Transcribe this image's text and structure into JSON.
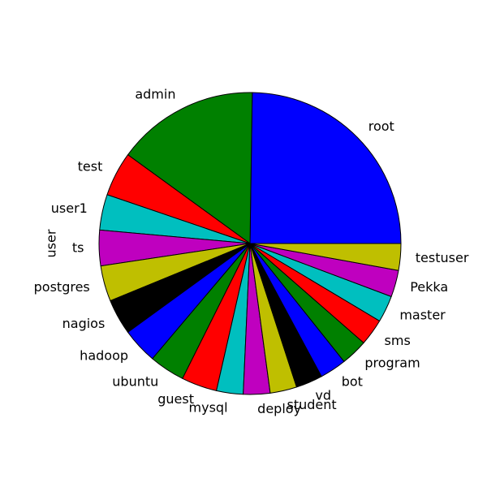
{
  "chart_data": {
    "type": "pie",
    "ylabel": "user",
    "start_angle_deg": 0,
    "direction": "counterclockwise",
    "slices": [
      {
        "label": "root",
        "value": 26.0,
        "color": "#0000ff"
      },
      {
        "label": "admin",
        "value": 16.0,
        "color": "#008000"
      },
      {
        "label": "test",
        "value": 5.0,
        "color": "#ff0000"
      },
      {
        "label": "user1",
        "value": 4.0,
        "color": "#00bfbf"
      },
      {
        "label": "ts",
        "value": 4.0,
        "color": "#bf00bf"
      },
      {
        "label": "postgres",
        "value": 4.0,
        "color": "#bfbf00"
      },
      {
        "label": "nagios",
        "value": 4.0,
        "color": "#000000"
      },
      {
        "label": "hadoop",
        "value": 4.0,
        "color": "#0000ff"
      },
      {
        "label": "ubuntu",
        "value": 4.0,
        "color": "#008000"
      },
      {
        "label": "guest",
        "value": 4.0,
        "color": "#ff0000"
      },
      {
        "label": "mysql",
        "value": 3.0,
        "color": "#00bfbf"
      },
      {
        "label": "deploy",
        "value": 3.0,
        "color": "#bf00bf"
      },
      {
        "label": "student",
        "value": 3.0,
        "color": "#bfbf00"
      },
      {
        "label": "vd",
        "value": 3.0,
        "color": "#000000"
      },
      {
        "label": "bot",
        "value": 3.0,
        "color": "#0000ff"
      },
      {
        "label": "program",
        "value": 3.0,
        "color": "#008000"
      },
      {
        "label": "sms",
        "value": 3.0,
        "color": "#ff0000"
      },
      {
        "label": "master",
        "value": 3.0,
        "color": "#00bfbf"
      },
      {
        "label": "Pekka",
        "value": 3.0,
        "color": "#bf00bf"
      },
      {
        "label": "testuser",
        "value": 3.0,
        "color": "#bfbf00"
      }
    ]
  }
}
